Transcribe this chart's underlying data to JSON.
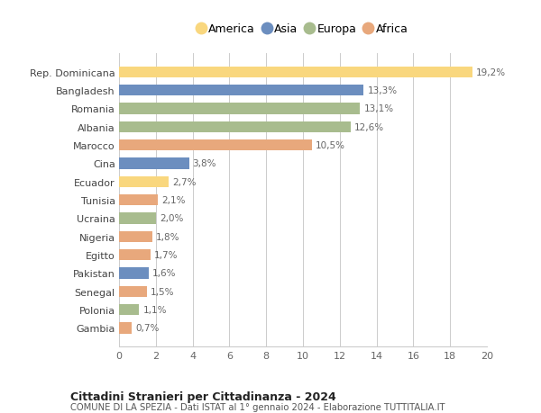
{
  "countries": [
    "Rep. Dominicana",
    "Bangladesh",
    "Romania",
    "Albania",
    "Marocco",
    "Cina",
    "Ecuador",
    "Tunisia",
    "Ucraina",
    "Nigeria",
    "Egitto",
    "Pakistan",
    "Senegal",
    "Polonia",
    "Gambia"
  ],
  "values": [
    19.2,
    13.3,
    13.1,
    12.6,
    10.5,
    3.8,
    2.7,
    2.1,
    2.0,
    1.8,
    1.7,
    1.6,
    1.5,
    1.1,
    0.7
  ],
  "labels": [
    "19,2%",
    "13,3%",
    "13,1%",
    "12,6%",
    "10,5%",
    "3,8%",
    "2,7%",
    "2,1%",
    "2,0%",
    "1,8%",
    "1,7%",
    "1,6%",
    "1,5%",
    "1,1%",
    "0,7%"
  ],
  "colors": [
    "#F9D77E",
    "#6C8EBF",
    "#A8BC8E",
    "#A8BC8E",
    "#E8A87C",
    "#6C8EBF",
    "#F9D77E",
    "#E8A87C",
    "#A8BC8E",
    "#E8A87C",
    "#E8A87C",
    "#6C8EBF",
    "#E8A87C",
    "#A8BC8E",
    "#E8A87C"
  ],
  "legend_labels": [
    "America",
    "Asia",
    "Europa",
    "Africa"
  ],
  "legend_colors": [
    "#F9D77E",
    "#6C8EBF",
    "#A8BC8E",
    "#E8A87C"
  ],
  "title1": "Cittadini Stranieri per Cittadinanza - 2024",
  "title2": "COMUNE DI LA SPEZIA - Dati ISTAT al 1° gennaio 2024 - Elaborazione TUTTITALIA.IT",
  "xlim": [
    0,
    20
  ],
  "xticks": [
    0,
    2,
    4,
    6,
    8,
    10,
    12,
    14,
    16,
    18,
    20
  ],
  "bg_color": "#FFFFFF",
  "grid_color": "#CCCCCC",
  "label_color": "#666666",
  "ytick_color": "#444444"
}
